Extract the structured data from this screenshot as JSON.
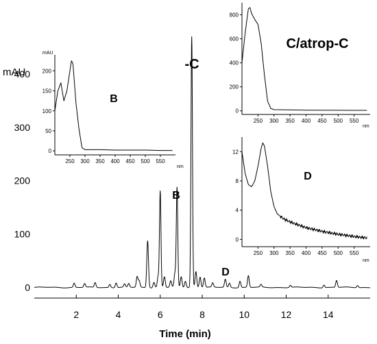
{
  "chart_data": [
    {
      "type": "line",
      "title": "",
      "xlabel": "Time (min)",
      "ylabel": "mAU",
      "xlim": [
        0,
        16
      ],
      "ylim": [
        -20,
        500
      ],
      "x_ticks": [
        2,
        4,
        6,
        8,
        10,
        12,
        14
      ],
      "y_ticks": [
        0,
        100,
        200,
        300,
        400
      ],
      "peaks": [
        {
          "x": 1.9,
          "y": 8
        },
        {
          "x": 2.4,
          "y": 7
        },
        {
          "x": 2.9,
          "y": 9
        },
        {
          "x": 3.6,
          "y": 6
        },
        {
          "x": 3.9,
          "y": 9
        },
        {
          "x": 4.3,
          "y": 6
        },
        {
          "x": 4.5,
          "y": 7
        },
        {
          "x": 4.9,
          "y": 20
        },
        {
          "x": 5.0,
          "y": 12
        },
        {
          "x": 5.4,
          "y": 88
        },
        {
          "x": 5.7,
          "y": 10
        },
        {
          "x": 5.9,
          "y": 20
        },
        {
          "x": 6.0,
          "y": 180
        },
        {
          "x": 6.2,
          "y": 20
        },
        {
          "x": 6.5,
          "y": 12
        },
        {
          "x": 6.7,
          "y": 25
        },
        {
          "x": 6.8,
          "y": 186
        },
        {
          "x": 7.0,
          "y": 20
        },
        {
          "x": 7.2,
          "y": 12
        },
        {
          "x": 7.5,
          "y": 470
        },
        {
          "x": 7.7,
          "y": 30
        },
        {
          "x": 7.9,
          "y": 20
        },
        {
          "x": 8.1,
          "y": 18
        },
        {
          "x": 8.5,
          "y": 8
        },
        {
          "x": 9.1,
          "y": 15
        },
        {
          "x": 9.3,
          "y": 8
        },
        {
          "x": 9.8,
          "y": 12
        },
        {
          "x": 10.2,
          "y": 22
        },
        {
          "x": 10.8,
          "y": 5
        },
        {
          "x": 12.2,
          "y": 4
        },
        {
          "x": 13.8,
          "y": 5
        },
        {
          "x": 14.4,
          "y": 13
        },
        {
          "x": 15.4,
          "y": 4
        }
      ],
      "annotations": [
        {
          "text": "C/atrop-C",
          "x": 7.5,
          "y": 470
        },
        {
          "text": "B",
          "x": 6.8,
          "y": 186
        },
        {
          "text": "D",
          "x": 9.1,
          "y": 15
        }
      ]
    },
    {
      "type": "line",
      "title": "",
      "ylabel": "mAU",
      "xlabel": "nm",
      "label": "B",
      "xlim": [
        200,
        600
      ],
      "ylim": [
        -10,
        240
      ],
      "x_ticks": [
        250,
        300,
        350,
        400,
        450,
        500,
        550
      ],
      "y_ticks": [
        0,
        50,
        100,
        150,
        200
      ],
      "x": [
        200,
        210,
        220,
        230,
        240,
        250,
        255,
        260,
        265,
        270,
        280,
        290,
        300,
        350,
        400,
        450,
        500,
        550,
        590
      ],
      "y": [
        100,
        150,
        170,
        125,
        150,
        200,
        225,
        218,
        170,
        120,
        55,
        8,
        3,
        3,
        2,
        2,
        2,
        1,
        1
      ]
    },
    {
      "type": "line",
      "title": "",
      "xlabel": "nm",
      "label": "C/atrop-C",
      "xlim": [
        200,
        600
      ],
      "ylim": [
        -30,
        900
      ],
      "x_ticks": [
        250,
        300,
        350,
        400,
        450,
        500,
        550
      ],
      "y_ticks": [
        0,
        200,
        400,
        600,
        800
      ],
      "x": [
        200,
        210,
        220,
        225,
        230,
        240,
        250,
        260,
        270,
        280,
        290,
        300,
        350,
        400,
        450,
        500,
        550,
        590
      ],
      "y": [
        400,
        650,
        850,
        860,
        810,
        760,
        720,
        560,
        300,
        80,
        20,
        10,
        8,
        6,
        5,
        5,
        4,
        4
      ]
    },
    {
      "type": "line",
      "title": "",
      "xlabel": "nm",
      "label": "D",
      "xlim": [
        200,
        600
      ],
      "ylim": [
        -1,
        14
      ],
      "x_ticks": [
        250,
        300,
        350,
        400,
        450,
        500,
        550
      ],
      "y_ticks": [
        0,
        4,
        8,
        12
      ],
      "x": [
        200,
        210,
        220,
        230,
        240,
        250,
        260,
        265,
        270,
        280,
        290,
        300,
        310,
        330,
        350,
        400,
        450,
        500,
        550,
        590
      ],
      "y": [
        12,
        9,
        7.5,
        7.2,
        8,
        10,
        12.5,
        13.2,
        12.8,
        10,
        6.5,
        4.5,
        3.5,
        2.8,
        2.4,
        1.6,
        1.1,
        0.7,
        0.4,
        0.2
      ]
    }
  ]
}
